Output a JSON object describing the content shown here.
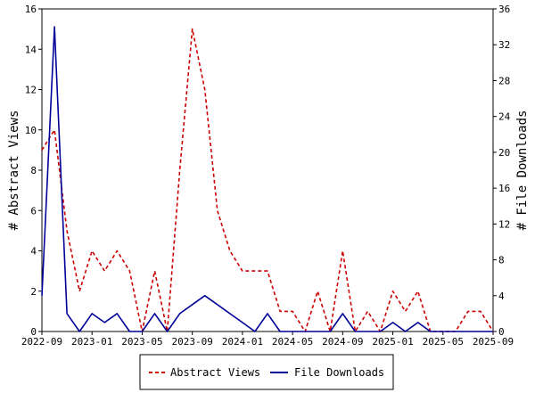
{
  "chart_data": {
    "type": "line",
    "x_ticks": [
      "2022-09",
      "2023-01",
      "2023-05",
      "2023-09",
      "2024-01",
      "2024-05",
      "2024-09",
      "2025-01",
      "2025-05",
      "2025-09"
    ],
    "xlim": [
      "2022-09",
      "2025-09"
    ],
    "y_left": {
      "label": "# Abstract Views",
      "lim": [
        0,
        16
      ],
      "ticks": [
        "0",
        "2",
        "4",
        "6",
        "8",
        "10",
        "12",
        "14",
        "16"
      ]
    },
    "y_right": {
      "label": "# File Downloads",
      "lim": [
        0,
        36
      ],
      "ticks": [
        "0",
        "4",
        "8",
        "12",
        "16",
        "20",
        "24",
        "28",
        "32",
        "36"
      ]
    },
    "grid": false,
    "legend_position": "bottom-center",
    "series": [
      {
        "name": "Abstract Views",
        "axis": "left",
        "color": "#cc0000",
        "dash": "dashed",
        "x": [
          "2022-09",
          "2022-10",
          "2022-11",
          "2022-12",
          "2023-01",
          "2023-02",
          "2023-03",
          "2023-04",
          "2023-05",
          "2023-06",
          "2023-07",
          "2023-08",
          "2023-09",
          "2023-10",
          "2023-11",
          "2023-12",
          "2024-01",
          "2024-02",
          "2024-03",
          "2024-04",
          "2024-05",
          "2024-06",
          "2024-07",
          "2024-08",
          "2024-09",
          "2024-10",
          "2024-11",
          "2024-12",
          "2025-01",
          "2025-02",
          "2025-03",
          "2025-04",
          "2025-05",
          "2025-06",
          "2025-07",
          "2025-08",
          "2025-09"
        ],
        "values": [
          9,
          10,
          5,
          2,
          4,
          3,
          4,
          3,
          0,
          3,
          0,
          8,
          15,
          12,
          6,
          4,
          3,
          3,
          3,
          1,
          1,
          0,
          2,
          0,
          4,
          0,
          1,
          0,
          2,
          1,
          2,
          0,
          0,
          0,
          1,
          1,
          0
        ]
      },
      {
        "name": "File Downloads",
        "axis": "right",
        "color": "#000099",
        "dash": "solid",
        "x": [
          "2022-09",
          "2022-10",
          "2022-11",
          "2022-12",
          "2023-01",
          "2023-02",
          "2023-03",
          "2023-04",
          "2023-05",
          "2023-06",
          "2023-07",
          "2023-08",
          "2023-09",
          "2023-10",
          "2023-11",
          "2023-12",
          "2024-01",
          "2024-02",
          "2024-03",
          "2024-04",
          "2024-05",
          "2024-06",
          "2024-07",
          "2024-08",
          "2024-09",
          "2024-10",
          "2024-11",
          "2024-12",
          "2025-01",
          "2025-02",
          "2025-03",
          "2025-04",
          "2025-05",
          "2025-06",
          "2025-07",
          "2025-08",
          "2025-09"
        ],
        "values": [
          4,
          34,
          2,
          0,
          2,
          1,
          2,
          0,
          0,
          2,
          0,
          2,
          3,
          4,
          3,
          2,
          1,
          0,
          2,
          0,
          0,
          0,
          0,
          0,
          2,
          0,
          0,
          0,
          1,
          0,
          1,
          0,
          0,
          0,
          0,
          0,
          0
        ]
      }
    ]
  }
}
